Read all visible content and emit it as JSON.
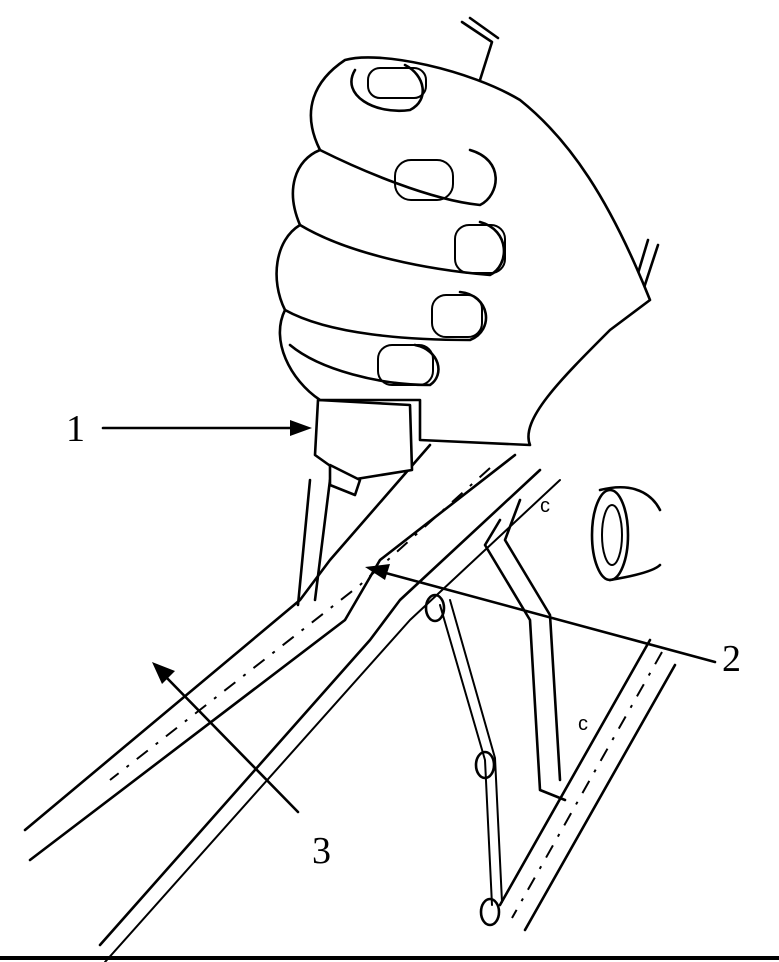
{
  "callouts": [
    {
      "id": "1",
      "label": "1"
    },
    {
      "id": "2",
      "label": "2"
    },
    {
      "id": "3",
      "label": "3"
    }
  ]
}
